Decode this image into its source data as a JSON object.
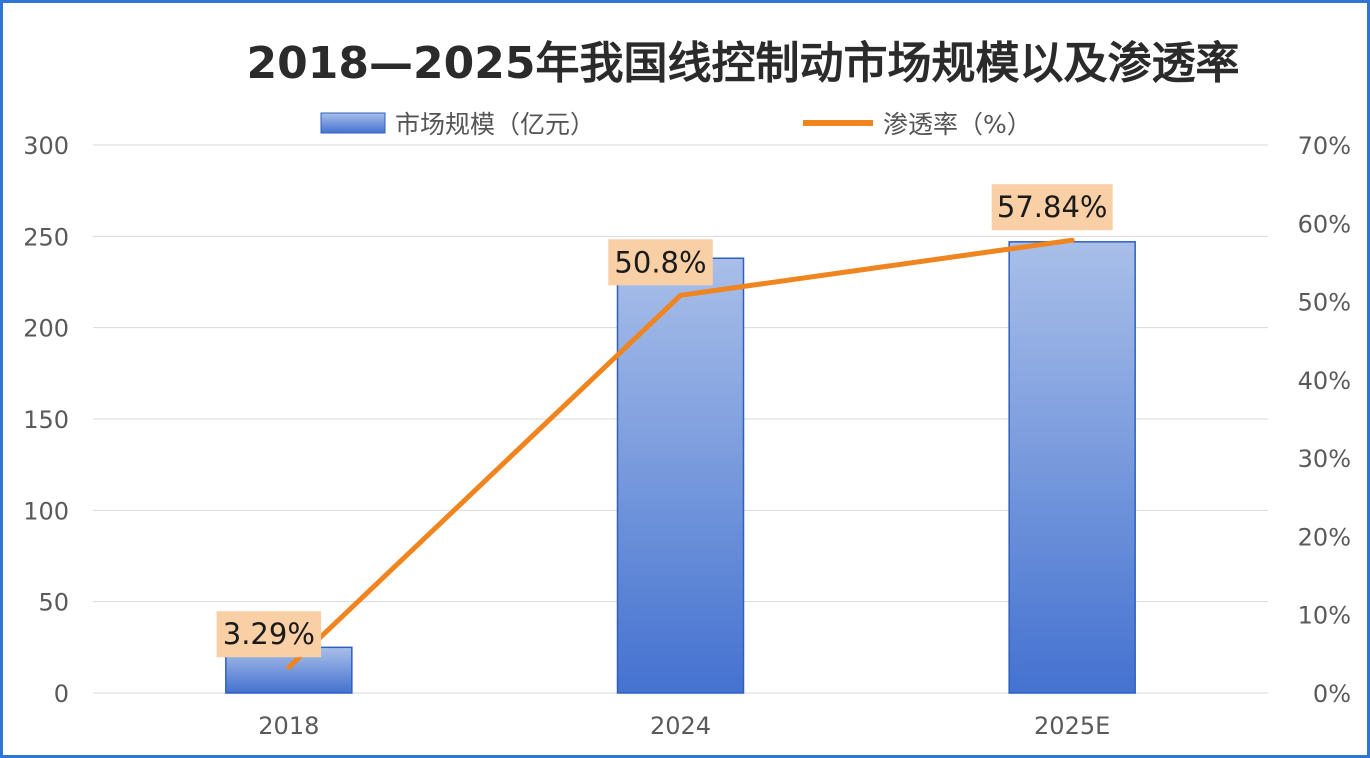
{
  "chart_data": {
    "type": "bar",
    "title": "2018—2025年我国线控制动市场规模以及渗透率",
    "categories": [
      "2018",
      "2024",
      "2025E"
    ],
    "series": [
      {
        "name": "市场规模（亿元）",
        "type": "bar",
        "axis": "left",
        "values": [
          25,
          238,
          247
        ]
      },
      {
        "name": "渗透率（%）",
        "type": "line",
        "axis": "right",
        "values": [
          3.29,
          50.8,
          57.84
        ],
        "data_labels": [
          "3.29%",
          "50.8%",
          "57.84%"
        ]
      }
    ],
    "y_left": {
      "ylim": [
        0,
        300
      ],
      "ticks": [
        "0",
        "50",
        "100",
        "150",
        "200",
        "250",
        "300"
      ]
    },
    "y_right": {
      "ylim": [
        0,
        70
      ],
      "ticks": [
        "0%",
        "10%",
        "20%",
        "30%",
        "40%",
        "50%",
        "60%",
        "70%"
      ]
    },
    "grid": true,
    "legend_position": "top-center",
    "colors": {
      "bar_top": "#a9bfe9",
      "bar_bottom": "#4472d0",
      "bar_edge": "#2f5fbf",
      "line": "#f0851f",
      "label_bg": "#f9cfa6",
      "grid": "#d9d9d9",
      "border": "#2f75d6"
    }
  }
}
